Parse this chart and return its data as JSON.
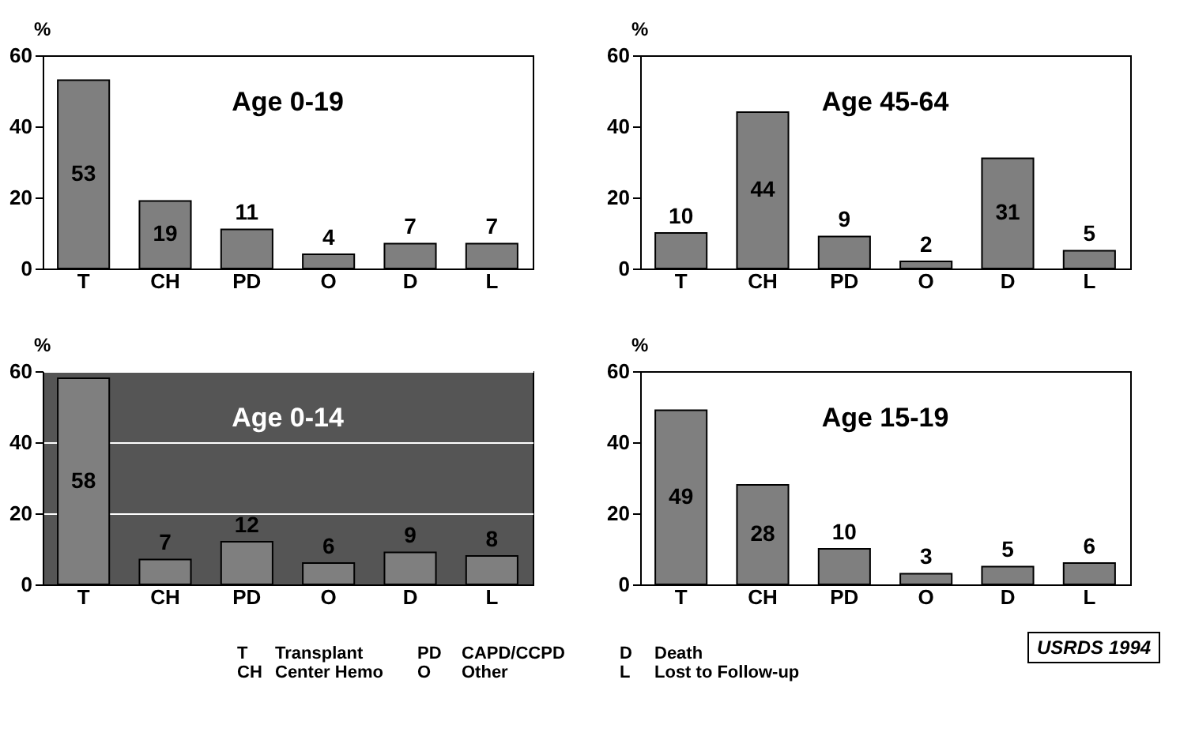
{
  "chart_data": [
    {
      "type": "bar",
      "title": "Age 0-19",
      "ylabel": "%",
      "categories": [
        "T",
        "CH",
        "PD",
        "O",
        "D",
        "L"
      ],
      "values": [
        53,
        19,
        11,
        4,
        7,
        7
      ],
      "color": "#7f7f7f",
      "data_labels": true,
      "ylim": [
        0,
        60
      ],
      "yticks": [
        0,
        20,
        40,
        60
      ]
    },
    {
      "type": "bar",
      "title": "Age 45-64",
      "ylabel": "%",
      "categories": [
        "T",
        "CH",
        "PD",
        "O",
        "D",
        "L"
      ],
      "values": [
        10,
        44,
        9,
        2,
        31,
        5
      ],
      "color": "#7f7f7f",
      "data_labels": true,
      "ylim": [
        0,
        60
      ],
      "yticks": [
        0,
        20,
        40,
        60
      ]
    },
    {
      "type": "bar",
      "title": "Age 0-14",
      "ylabel": "%",
      "categories": [
        "T",
        "CH",
        "PD",
        "O",
        "D",
        "L"
      ],
      "values": [
        58,
        7,
        12,
        6,
        9,
        8
      ],
      "color": "#7f7f7f",
      "data_labels": true,
      "ylim": [
        0,
        60
      ],
      "yticks": [
        0,
        20,
        40,
        60
      ],
      "grid": "y"
    },
    {
      "type": "bar",
      "title": "Age 15-19",
      "ylabel": "%",
      "categories": [
        "T",
        "CH",
        "PD",
        "O",
        "D",
        "L"
      ],
      "values": [
        49,
        28,
        10,
        3,
        5,
        6
      ],
      "color": "#7f7f7f",
      "data_labels": true,
      "ylim": [
        0,
        60
      ],
      "yticks": [
        0,
        20,
        40,
        60
      ],
      "annotations": [
        "T",
        "Transplant",
        "CH",
        "Center Hemo",
        "PD",
        "CAPD/CCPD",
        "O",
        "Other",
        "D",
        "Death",
        "L",
        "Lost to Follow-up",
        "USRDS 1994"
      ]
    }
  ]
}
